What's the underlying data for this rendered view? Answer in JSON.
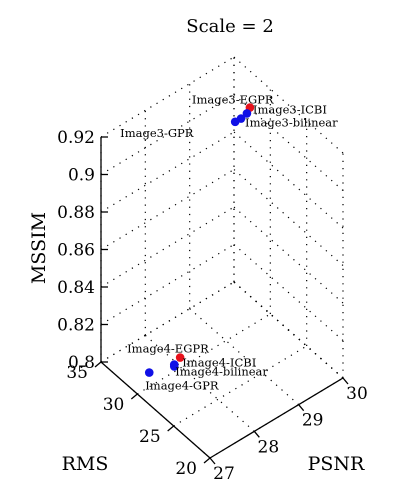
{
  "chart_data": {
    "type": "scatter",
    "projection": "3d",
    "title": "Scale = 2",
    "axes": {
      "x": {
        "label": "PSNR",
        "range": [
          27,
          30
        ],
        "ticks": [
          "27",
          "28",
          "29",
          "30"
        ]
      },
      "y": {
        "label": "RMS",
        "range": [
          20,
          35
        ],
        "ticks": [
          "20",
          "25",
          "30",
          "35"
        ]
      },
      "z": {
        "label": "MSSIM",
        "range": [
          0.8,
          0.92
        ],
        "ticks": [
          "0.8",
          "0.82",
          "0.84",
          "0.86",
          "0.88",
          "0.9",
          "0.92"
        ]
      }
    },
    "grid": true,
    "colors": {
      "egpr": "#e8111b",
      "others": "#1010e6"
    },
    "points": [
      {
        "label": "Image3-EGPR",
        "color": "red",
        "psnr": 29.9,
        "rms": 32.2,
        "mssim": 0.904
      },
      {
        "label": "Image3-ICBI",
        "color": "blue",
        "psnr": 29.8,
        "rms": 32.0,
        "mssim": 0.903
      },
      {
        "label": "Image3-bilinear",
        "color": "blue",
        "psnr": 29.7,
        "rms": 32.2,
        "mssim": 0.901
      },
      {
        "label": "Image3-GPR",
        "color": "blue",
        "psnr": 29.6,
        "rms": 32.4,
        "mssim": 0.9
      },
      {
        "label": "Image4-EGPR",
        "color": "red",
        "psnr": 27.9,
        "rms": 29.6,
        "mssim": 0.808
      },
      {
        "label": "Image4-ICBI",
        "color": "blue",
        "psnr": 27.8,
        "rms": 29.8,
        "mssim": 0.805
      },
      {
        "label": "Image4-bilinear",
        "color": "blue",
        "psnr": 27.8,
        "rms": 29.8,
        "mssim": 0.804
      },
      {
        "label": "Image4-GPR",
        "color": "blue",
        "psnr": 27.4,
        "rms": 30.8,
        "mssim": 0.803
      }
    ]
  }
}
